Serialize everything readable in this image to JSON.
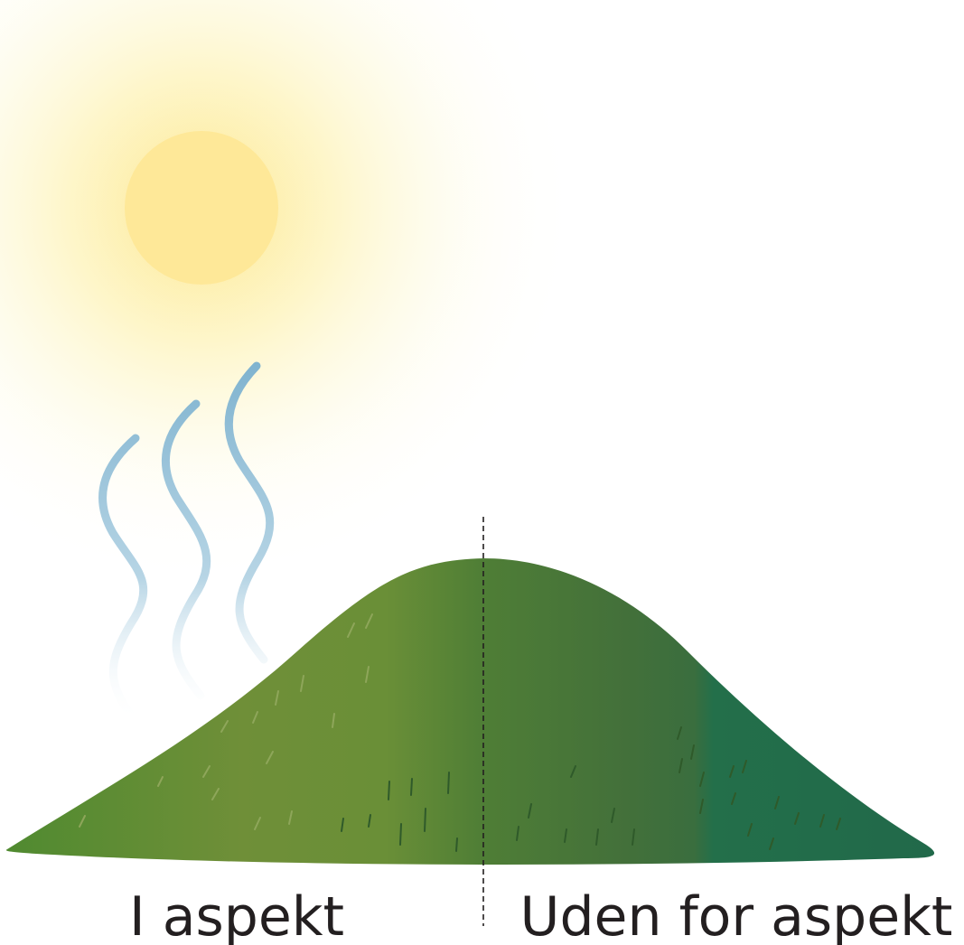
{
  "labels": {
    "left": "I aspekt",
    "right": "Uden for aspekt"
  }
}
